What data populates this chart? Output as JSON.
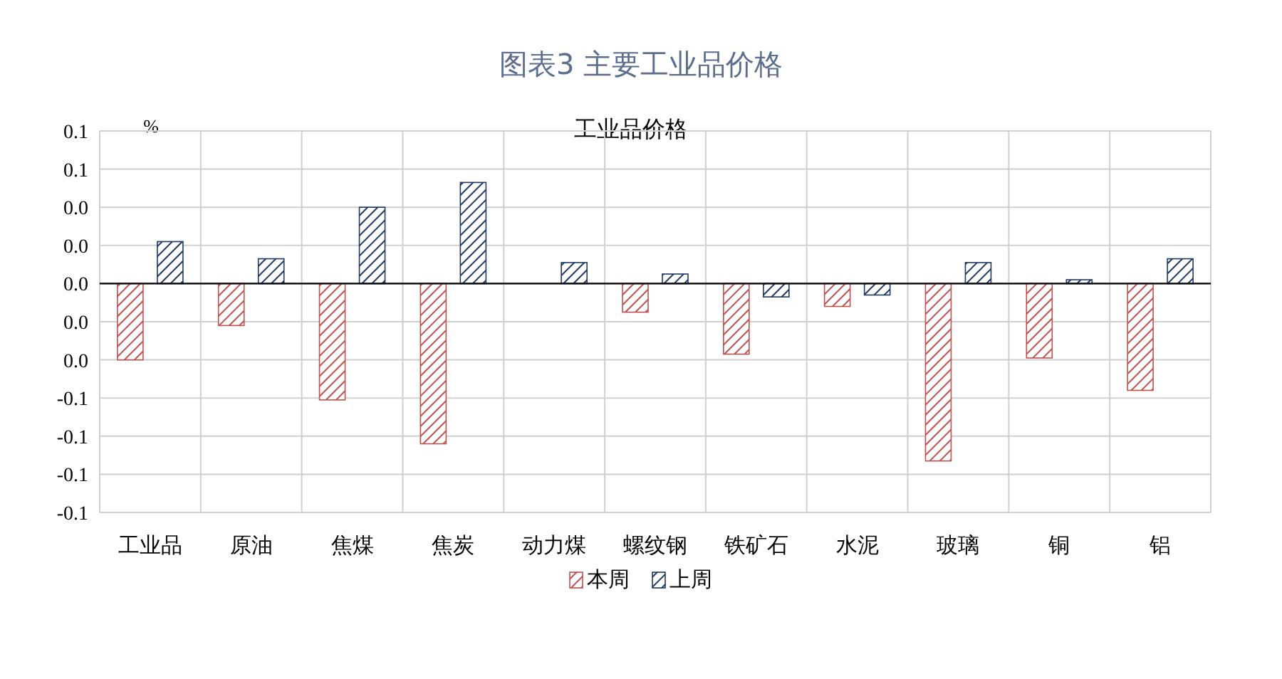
{
  "chart_data": {
    "type": "bar",
    "title": "图表3 主要工业品价格",
    "subtitle": "工业品价格",
    "ylabel": "%",
    "categories": [
      "工业品",
      "原油",
      "焦煤",
      "焦炭",
      "动力煤",
      "螺纹钢",
      "铁矿石",
      "水泥",
      "玻璃",
      "铜",
      "铝"
    ],
    "series": [
      {
        "name": "本周",
        "color": "#c0504d",
        "values": [
          -0.04,
          -0.022,
          -0.061,
          -0.084,
          0,
          -0.015,
          -0.037,
          -0.012,
          -0.093,
          -0.039,
          -0.056
        ]
      },
      {
        "name": "上周",
        "color": "#1f3864",
        "values": [
          0.022,
          0.013,
          0.04,
          0.053,
          0.011,
          0.005,
          -0.007,
          -0.006,
          0.011,
          0.002,
          0.013
        ]
      }
    ],
    "ylim": [
      -0.12,
      0.08
    ],
    "yticks": [
      {
        "value": -0.12,
        "label": "-0.1"
      },
      {
        "value": -0.1,
        "label": "-0.1"
      },
      {
        "value": -0.08,
        "label": "-0.1"
      },
      {
        "value": -0.06,
        "label": "-0.1"
      },
      {
        "value": -0.04,
        "label": "0.0"
      },
      {
        "value": -0.02,
        "label": "0.0"
      },
      {
        "value": 0,
        "label": "0.0"
      },
      {
        "value": 0.02,
        "label": "0.0"
      },
      {
        "value": 0.04,
        "label": "0.0"
      },
      {
        "value": 0.06,
        "label": "0.1"
      },
      {
        "value": 0.08,
        "label": "0.1"
      }
    ],
    "grid": true,
    "legend": "bottom"
  }
}
